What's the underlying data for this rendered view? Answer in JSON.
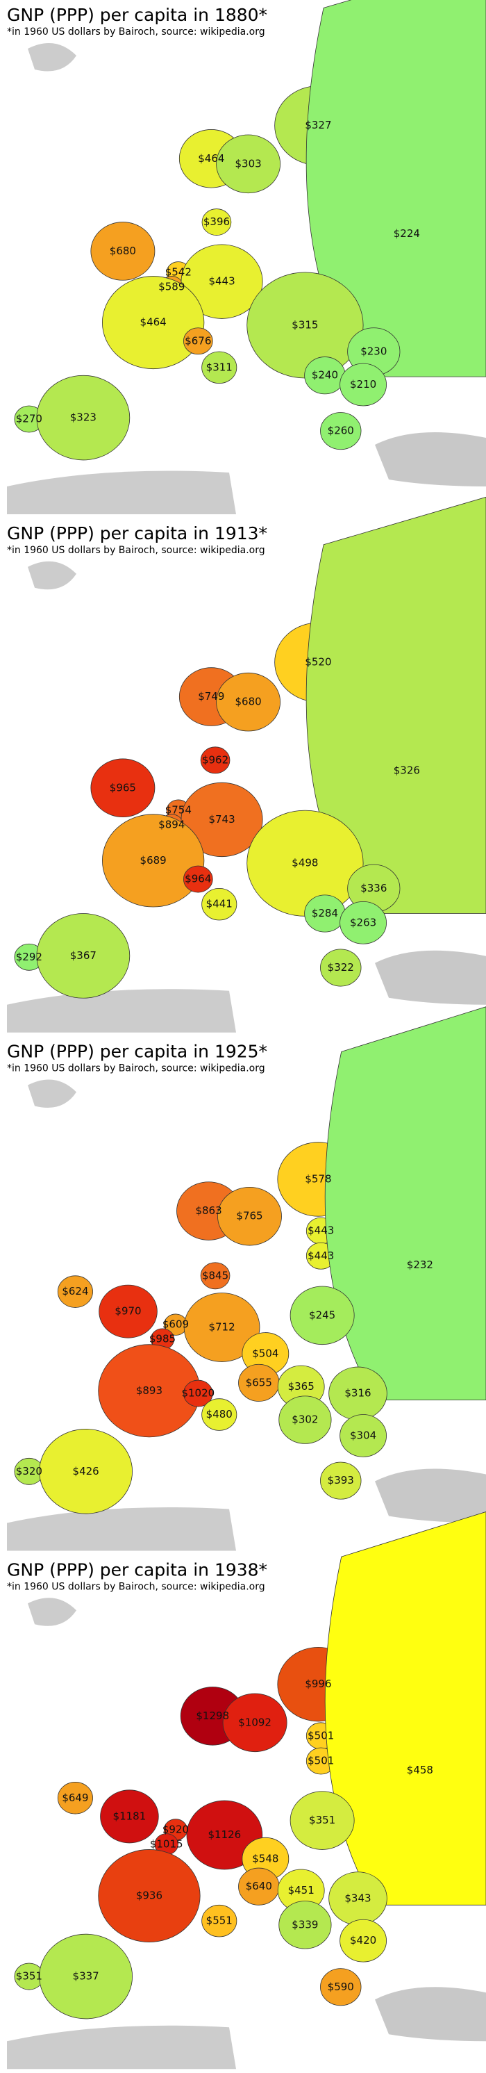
{
  "maps": [
    {
      "title": "GNP (PPP) per capita in 1880*",
      "subtitle": "*in 1960 US dollars by Bairoch, source: wikipedia.org",
      "labels": [
        {
          "text": "$327",
          "color": "#b4e850"
        },
        {
          "text": "$464",
          "color": "#e8f030"
        },
        {
          "text": "$303",
          "color": "#b4e850"
        },
        {
          "text": "$224",
          "color": "#90f070"
        },
        {
          "text": "$396",
          "color": "#e8f030"
        },
        {
          "text": "$680",
          "color": "#f5a020"
        },
        {
          "text": "$542",
          "color": "#ffd020"
        },
        {
          "text": "$589",
          "color": "#f5a020"
        },
        {
          "text": "$443",
          "color": "#e8f030"
        },
        {
          "text": "$464",
          "color": "#e8f030"
        },
        {
          "text": "$315",
          "color": "#b4e850"
        },
        {
          "text": "$676",
          "color": "#f5a020"
        },
        {
          "text": "$230",
          "color": "#90f070"
        },
        {
          "text": "$311",
          "color": "#b4e850"
        },
        {
          "text": "$240",
          "color": "#90f070"
        },
        {
          "text": "$210",
          "color": "#90f070"
        },
        {
          "text": "$270",
          "color": "#a4ec5c"
        },
        {
          "text": "$323",
          "color": "#b4e850"
        },
        {
          "text": "$260",
          "color": "#90f070"
        }
      ]
    },
    {
      "title": "GNP (PPP) per capita in 1913*",
      "subtitle": "*in 1960 US dollars by Bairoch, source: wikipedia.org",
      "labels": [
        {
          "text": "$520",
          "color": "#ffd020"
        },
        {
          "text": "$749",
          "color": "#f07020"
        },
        {
          "text": "$680",
          "color": "#f5a020"
        },
        {
          "text": "$326",
          "color": "#b4e850"
        },
        {
          "text": "$962",
          "color": "#e83010"
        },
        {
          "text": "$965",
          "color": "#e83010"
        },
        {
          "text": "$754",
          "color": "#f07020"
        },
        {
          "text": "$894",
          "color": "#f07020"
        },
        {
          "text": "$743",
          "color": "#f07020"
        },
        {
          "text": "$689",
          "color": "#f5a020"
        },
        {
          "text": "$498",
          "color": "#e8f030"
        },
        {
          "text": "$964",
          "color": "#e83010"
        },
        {
          "text": "$336",
          "color": "#b4e850"
        },
        {
          "text": "$441",
          "color": "#e8f030"
        },
        {
          "text": "$284",
          "color": "#90f070"
        },
        {
          "text": "$263",
          "color": "#90f070"
        },
        {
          "text": "$292",
          "color": "#90f070"
        },
        {
          "text": "$367",
          "color": "#b4e850"
        },
        {
          "text": "$322",
          "color": "#b4e850"
        }
      ]
    },
    {
      "title": "GNP (PPP) per capita in 1925*",
      "subtitle": "*in 1960 US dollars by Bairoch, source: wikipedia.org",
      "labels": [
        {
          "text": "$578",
          "color": "#ffd020"
        },
        {
          "text": "$863",
          "color": "#f07020"
        },
        {
          "text": "$765",
          "color": "#f5a020"
        },
        {
          "text": "$443",
          "color": "#e8f030"
        },
        {
          "text": "$443",
          "color": "#e8f030"
        },
        {
          "text": "$232",
          "color": "#90f070"
        },
        {
          "text": "$845",
          "color": "#f07020"
        },
        {
          "text": "$624",
          "color": "#f5a020"
        },
        {
          "text": "$970",
          "color": "#e83010"
        },
        {
          "text": "$245",
          "color": "#a4ec5c"
        },
        {
          "text": "$609",
          "color": "#f5a020"
        },
        {
          "text": "$985",
          "color": "#e83010"
        },
        {
          "text": "$712",
          "color": "#f5a020"
        },
        {
          "text": "$504",
          "color": "#ffd020"
        },
        {
          "text": "$655",
          "color": "#f5a020"
        },
        {
          "text": "$365",
          "color": "#d4ec40"
        },
        {
          "text": "$893",
          "color": "#f05018"
        },
        {
          "text": "$1020",
          "color": "#e83010"
        },
        {
          "text": "$316",
          "color": "#b4e850"
        },
        {
          "text": "$480",
          "color": "#e8f030"
        },
        {
          "text": "$302",
          "color": "#b4e850"
        },
        {
          "text": "$304",
          "color": "#b4e850"
        },
        {
          "text": "$320",
          "color": "#b4e850"
        },
        {
          "text": "$426",
          "color": "#e8f030"
        },
        {
          "text": "$393",
          "color": "#d4ec40"
        }
      ]
    },
    {
      "title": "GNP (PPP) per capita in 1938*",
      "subtitle": "*in 1960 US dollars by Bairoch, source: wikipedia.org",
      "labels": [
        {
          "text": "$996",
          "color": "#e85010"
        },
        {
          "text": "$1298",
          "color": "#b00010"
        },
        {
          "text": "$1092",
          "color": "#e02010"
        },
        {
          "text": "$501",
          "color": "#ffd020"
        },
        {
          "text": "$501",
          "color": "#ffd020"
        },
        {
          "text": "$458",
          "color": "#ffff10"
        },
        {
          "text": "$649",
          "color": "#f5a020"
        },
        {
          "text": "$1181",
          "color": "#d01010"
        },
        {
          "text": "$351",
          "color": "#d4ec40"
        },
        {
          "text": "$920",
          "color": "#e83010"
        },
        {
          "text": "$1015",
          "color": "#e02010"
        },
        {
          "text": "$1126",
          "color": "#d01010"
        },
        {
          "text": "$548",
          "color": "#ffd020"
        },
        {
          "text": "$640",
          "color": "#f5a020"
        },
        {
          "text": "$451",
          "color": "#e8f030"
        },
        {
          "text": "$936",
          "color": "#e84010"
        },
        {
          "text": "$343",
          "color": "#d4ec40"
        },
        {
          "text": "$551",
          "color": "#ffc020"
        },
        {
          "text": "$339",
          "color": "#b4e850"
        },
        {
          "text": "$420",
          "color": "#e8f030"
        },
        {
          "text": "$351",
          "color": "#b4e850"
        },
        {
          "text": "$337",
          "color": "#b4e850"
        },
        {
          "text": "$590",
          "color": "#f5a020"
        }
      ]
    }
  ]
}
